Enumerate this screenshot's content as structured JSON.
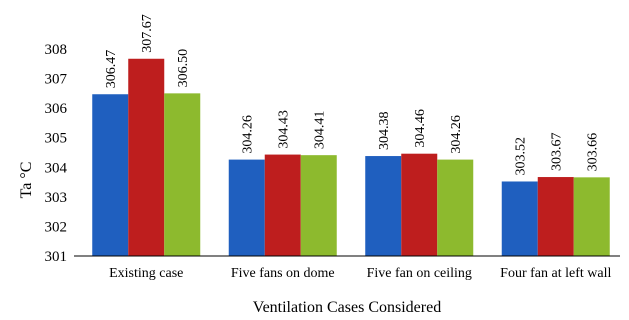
{
  "chart_data": {
    "type": "bar",
    "title": "",
    "xlabel": "Ventilation Cases Considered",
    "ylabel": "Ta °C",
    "ylim": [
      301,
      308
    ],
    "yticks": [
      301,
      302,
      303,
      304,
      305,
      306,
      307,
      308
    ],
    "grid": false,
    "legend": "none",
    "categories": [
      "Existing case",
      "Five fans on dome",
      "Five fan on ceiling",
      "Four fan at left wall"
    ],
    "series": [
      {
        "color": "#1F5FBF",
        "values": [
          306.47,
          304.26,
          304.38,
          303.52
        ],
        "labels": [
          "306.47",
          "304.26",
          "304.38",
          "303.52"
        ]
      },
      {
        "color": "#BE1E1E",
        "values": [
          307.67,
          304.43,
          304.46,
          303.67
        ],
        "labels": [
          "307.67",
          "304.43",
          "304.46",
          "303.67"
        ]
      },
      {
        "color": "#8DBA2E",
        "values": [
          306.5,
          304.41,
          304.26,
          303.66
        ],
        "labels": [
          "306.50",
          "304.41",
          "304.26",
          "303.66"
        ]
      }
    ]
  }
}
